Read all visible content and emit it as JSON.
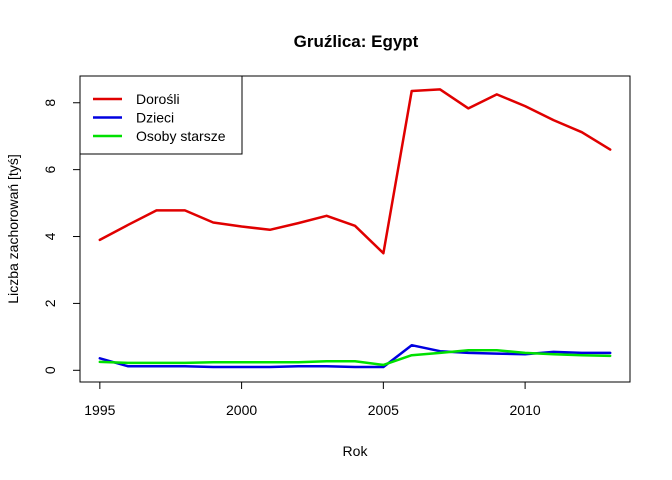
{
  "chart_data": {
    "type": "line",
    "title": "Gruźlica: Egypt",
    "xlabel": "Rok",
    "ylabel": "Liczba zachorowań [tyś]",
    "xlim": [
      1994.3,
      2013.7
    ],
    "ylim": [
      -0.35,
      8.8
    ],
    "xticks": [
      1995,
      2000,
      2005,
      2010
    ],
    "yticks": [
      0,
      2,
      4,
      6,
      8
    ],
    "x": [
      1995,
      1996,
      1997,
      1998,
      1999,
      2000,
      2001,
      2002,
      2003,
      2004,
      2005,
      2006,
      2007,
      2008,
      2009,
      2010,
      2011,
      2012,
      2013
    ],
    "series": [
      {
        "name": "Dorośli",
        "color": "#e00000",
        "values": [
          3.9,
          4.35,
          4.78,
          4.78,
          4.42,
          4.3,
          4.2,
          4.4,
          4.62,
          4.32,
          3.5,
          8.35,
          8.4,
          7.83,
          8.25,
          7.9,
          7.48,
          7.12,
          6.6
        ]
      },
      {
        "name": "Dzieci",
        "color": "#0000e0",
        "values": [
          0.36,
          0.12,
          0.12,
          0.12,
          0.1,
          0.1,
          0.1,
          0.12,
          0.12,
          0.1,
          0.1,
          0.75,
          0.57,
          0.52,
          0.5,
          0.48,
          0.55,
          0.52,
          0.52
        ]
      },
      {
        "name": "Osoby starsze",
        "color": "#00e000",
        "values": [
          0.25,
          0.22,
          0.22,
          0.22,
          0.24,
          0.24,
          0.24,
          0.24,
          0.27,
          0.27,
          0.16,
          0.45,
          0.52,
          0.6,
          0.6,
          0.52,
          0.48,
          0.45,
          0.43
        ]
      }
    ],
    "legend": "top-left",
    "grid": false
  }
}
